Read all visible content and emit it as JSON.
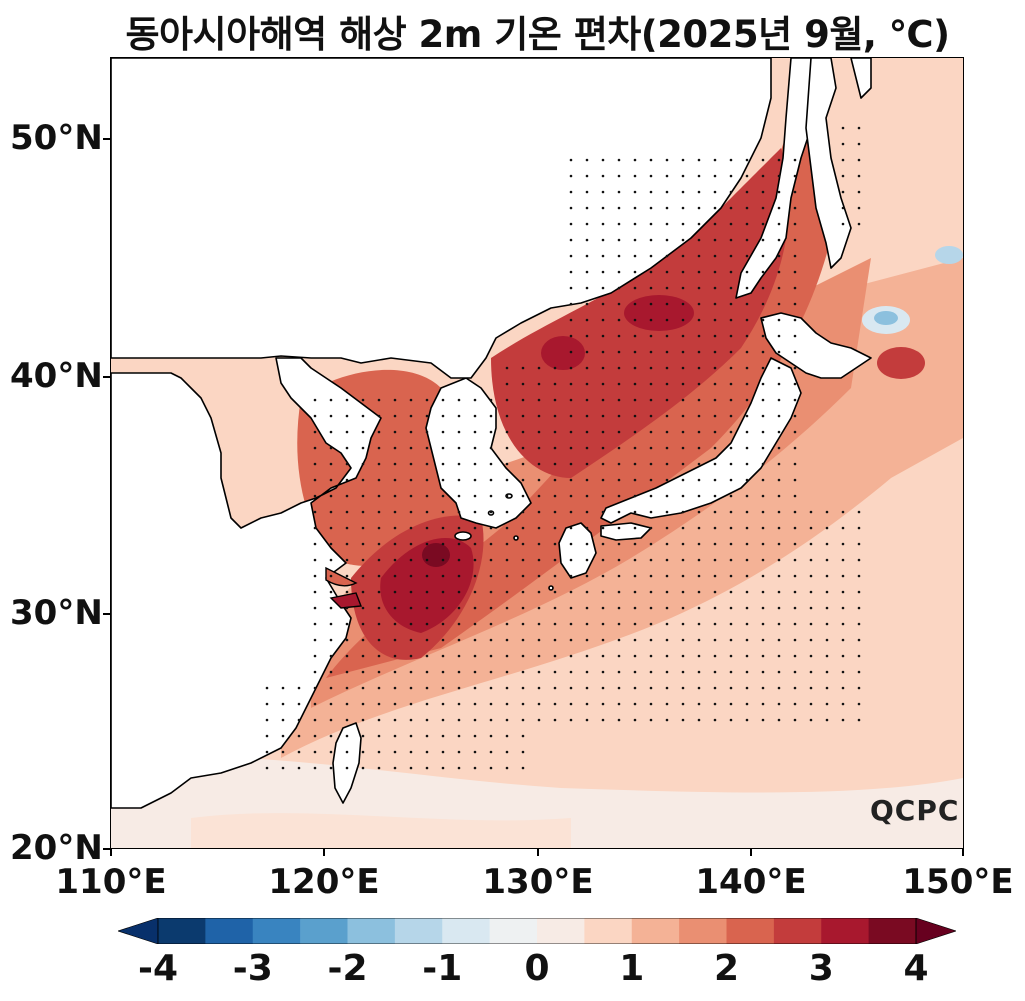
{
  "title": "동아시아해역 해상 2m 기온 편차(2025년 9월, ℃)",
  "logo": "QCPC",
  "axes": {
    "y_ticks": [
      "50°N",
      "40°N",
      "30°N",
      "20°N"
    ],
    "x_ticks": [
      "110°E",
      "120°E",
      "130°E",
      "140°E",
      "150°E"
    ]
  },
  "colorbar": {
    "ticks": [
      "-4",
      "-3",
      "-2",
      "-1",
      "0",
      "1",
      "2",
      "3",
      "4"
    ],
    "colors": [
      "#0b3a6e",
      "#1f63a8",
      "#3984c0",
      "#5aa0cd",
      "#8cc0de",
      "#b6d6e9",
      "#d9e8f1",
      "#eef1f2",
      "#f7ebe5",
      "#fbd6c3",
      "#f4b296",
      "#ea8f72",
      "#d9644f",
      "#c33c3c",
      "#a8182e",
      "#7a0a22"
    ],
    "extend_low": "#08306b",
    "extend_high": "#67001f"
  },
  "map": {
    "lon_range": [
      110,
      150
    ],
    "lat_range": [
      20,
      53.5
    ],
    "variable": "해상 2m 기온 편차",
    "period": "2025년 9월",
    "unit": "℃",
    "colors": {
      "land": "#ffffff",
      "coast": "#000000",
      "stipple": "#000000",
      "background_anomaly": "#fbe3d6"
    }
  }
}
